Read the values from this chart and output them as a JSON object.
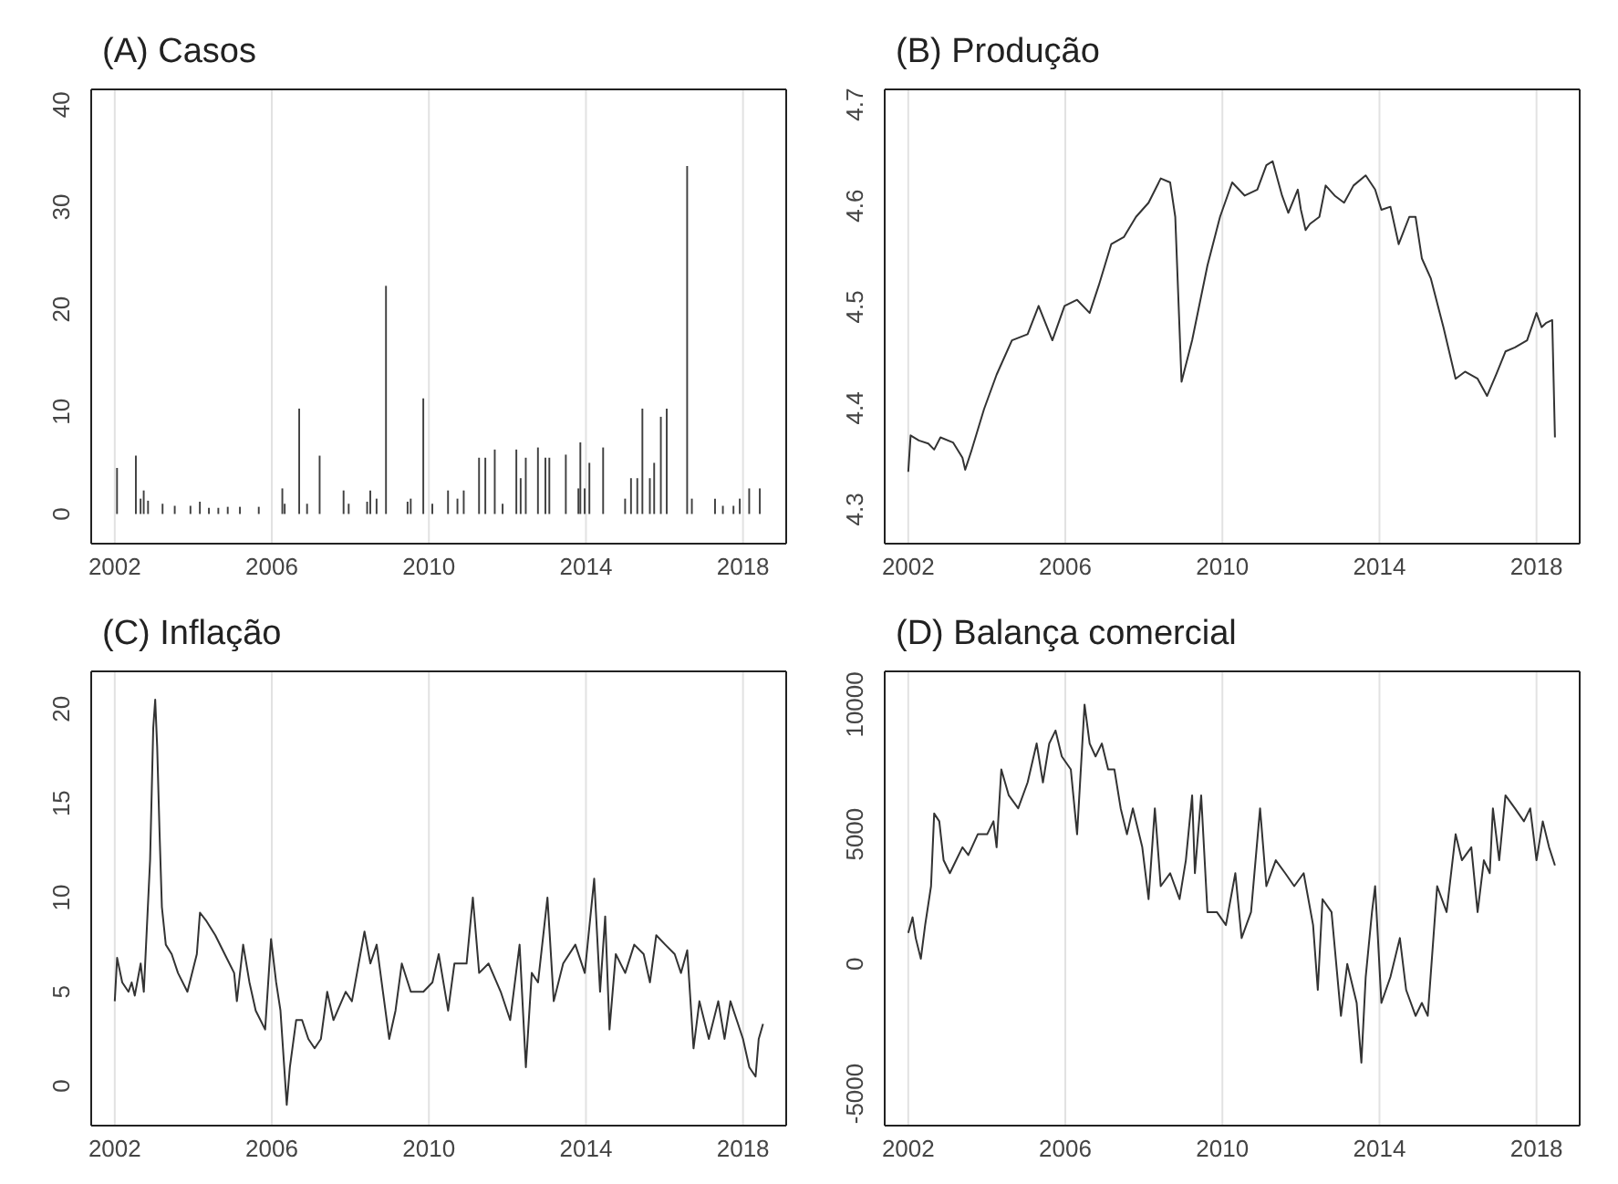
{
  "chart_data": [
    {
      "type": "bar",
      "title": "(A) Casos",
      "color": "#404040",
      "grid": "x",
      "xlim": [
        2001.4,
        2019.1
      ],
      "xticks": [
        2002,
        2006,
        2010,
        2014,
        2018
      ],
      "ylim": [
        -2.9,
        41.5
      ],
      "yticks": [
        0,
        10,
        20,
        30,
        40
      ],
      "x": [
        2002.06,
        2002.54,
        2002.66,
        2002.74,
        2002.85,
        2003.22,
        2003.53,
        2003.93,
        2004.17,
        2004.4,
        2004.64,
        2004.88,
        2005.19,
        2005.67,
        2006.27,
        2006.33,
        2006.7,
        2006.9,
        2007.22,
        2007.83,
        2007.96,
        2008.43,
        2008.51,
        2008.67,
        2008.91,
        2009.46,
        2009.54,
        2009.86,
        2010.09,
        2010.49,
        2010.73,
        2010.89,
        2011.28,
        2011.44,
        2011.68,
        2011.88,
        2012.23,
        2012.34,
        2012.47,
        2012.78,
        2012.97,
        2013.07,
        2013.49,
        2013.81,
        2013.86,
        2013.97,
        2014.09,
        2014.44,
        2015.0,
        2015.15,
        2015.31,
        2015.44,
        2015.63,
        2015.74,
        2015.91,
        2016.06,
        2016.58,
        2016.7,
        2017.29,
        2017.49,
        2017.76,
        2017.92,
        2018.16,
        2018.43
      ],
      "values": [
        4.5,
        5.7,
        1.5,
        2.3,
        1.3,
        1,
        0.8,
        0.8,
        1.2,
        0.6,
        0.6,
        0.7,
        0.7,
        0.7,
        2.5,
        1,
        10.3,
        1,
        5.7,
        2.3,
        1,
        1.2,
        2.3,
        1.5,
        22.3,
        1.2,
        1.5,
        11.3,
        1,
        2.3,
        1.5,
        2.3,
        5.5,
        5.5,
        6.3,
        1,
        6.3,
        3.5,
        5.5,
        6.5,
        5.5,
        5.5,
        5.8,
        2.5,
        7,
        2.5,
        5,
        6.5,
        1.5,
        3.5,
        3.5,
        10.3,
        3.5,
        5,
        9.5,
        10.3,
        34,
        1.5,
        1.5,
        0.8,
        0.8,
        1.5,
        2.5,
        2.5
      ]
    },
    {
      "type": "line",
      "title": "(B) Produção",
      "color": "#333333",
      "grid": "x",
      "xlim": [
        2001.4,
        2019.1
      ],
      "xticks": [
        2002,
        2006,
        2010,
        2014,
        2018
      ],
      "ylim": [
        4.266,
        4.715
      ],
      "yticks": [
        4.3,
        4.4,
        4.5,
        4.6,
        4.7
      ],
      "x": [
        2002.0,
        2002.06,
        2002.27,
        2002.51,
        2002.66,
        2002.82,
        2003.14,
        2003.38,
        2003.45,
        2003.61,
        2003.93,
        2004.25,
        2004.64,
        2005.04,
        2005.32,
        2005.67,
        2005.98,
        2006.3,
        2006.62,
        2006.85,
        2007.17,
        2007.49,
        2007.8,
        2008.12,
        2008.43,
        2008.67,
        2008.8,
        2008.96,
        2009.23,
        2009.62,
        2009.94,
        2010.25,
        2010.57,
        2010.89,
        2011.12,
        2011.28,
        2011.52,
        2011.68,
        2011.92,
        2012.0,
        2012.12,
        2012.23,
        2012.47,
        2012.63,
        2012.86,
        2013.1,
        2013.34,
        2013.65,
        2013.89,
        2014.05,
        2014.28,
        2014.49,
        2014.76,
        2014.92,
        2015.08,
        2015.31,
        2015.63,
        2015.94,
        2016.18,
        2016.5,
        2016.74,
        2016.97,
        2017.21,
        2017.45,
        2017.76,
        2018.0,
        2018.13,
        2018.24,
        2018.4,
        2018.47
      ],
      "values": [
        4.337,
        4.373,
        4.368,
        4.365,
        4.359,
        4.371,
        4.366,
        4.351,
        4.339,
        4.358,
        4.399,
        4.433,
        4.467,
        4.473,
        4.501,
        4.467,
        4.501,
        4.507,
        4.494,
        4.521,
        4.562,
        4.569,
        4.589,
        4.603,
        4.627,
        4.623,
        4.589,
        4.426,
        4.467,
        4.541,
        4.589,
        4.623,
        4.61,
        4.616,
        4.64,
        4.644,
        4.61,
        4.593,
        4.616,
        4.596,
        4.576,
        4.582,
        4.589,
        4.62,
        4.61,
        4.603,
        4.62,
        4.63,
        4.616,
        4.596,
        4.599,
        4.562,
        4.589,
        4.589,
        4.548,
        4.528,
        4.48,
        4.429,
        4.436,
        4.429,
        4.412,
        4.433,
        4.456,
        4.46,
        4.467,
        4.494,
        4.48,
        4.484,
        4.487,
        4.371
      ]
    },
    {
      "type": "line",
      "title": "(C) Inflação",
      "color": "#333333",
      "grid": "x",
      "xlim": [
        2001.4,
        2019.1
      ],
      "xticks": [
        2002,
        2006,
        2010,
        2014,
        2018
      ],
      "ylim": [
        -2.1,
        22
      ],
      "yticks": [
        0,
        5,
        10,
        15,
        20
      ],
      "x": [
        2002.0,
        2002.06,
        2002.19,
        2002.35,
        2002.43,
        2002.51,
        2002.66,
        2002.74,
        2002.9,
        2002.98,
        2003.03,
        2003.08,
        2003.14,
        2003.2,
        2003.3,
        2003.45,
        2003.61,
        2003.85,
        2004.09,
        2004.17,
        2004.32,
        2004.56,
        2004.8,
        2005.04,
        2005.11,
        2005.27,
        2005.43,
        2005.59,
        2005.83,
        2005.98,
        2006.11,
        2006.22,
        2006.38,
        2006.46,
        2006.62,
        2006.77,
        2006.93,
        2007.09,
        2007.25,
        2007.41,
        2007.57,
        2007.88,
        2008.04,
        2008.36,
        2008.51,
        2008.67,
        2008.83,
        2008.99,
        2009.15,
        2009.31,
        2009.54,
        2009.86,
        2010.09,
        2010.25,
        2010.49,
        2010.65,
        2010.96,
        2011.12,
        2011.28,
        2011.52,
        2011.83,
        2012.07,
        2012.31,
        2012.47,
        2012.62,
        2012.78,
        2013.02,
        2013.18,
        2013.42,
        2013.73,
        2013.97,
        2014.21,
        2014.36,
        2014.49,
        2014.6,
        2014.76,
        2015.0,
        2015.23,
        2015.47,
        2015.63,
        2015.79,
        2016.02,
        2016.26,
        2016.42,
        2016.58,
        2016.74,
        2016.89,
        2017.13,
        2017.37,
        2017.53,
        2017.68,
        2017.84,
        2018.0,
        2018.16,
        2018.32,
        2018.4,
        2018.51
      ],
      "values": [
        4.5,
        6.8,
        5.5,
        5,
        5.5,
        4.8,
        6.5,
        5,
        12,
        19,
        20.5,
        18,
        13.5,
        9.5,
        7.5,
        7,
        6,
        5,
        7,
        9.2,
        8.8,
        8,
        7,
        6,
        4.5,
        7.5,
        5.5,
        4,
        3,
        7.8,
        5.5,
        4,
        -1,
        1,
        3.5,
        3.5,
        2.5,
        2,
        2.5,
        5,
        3.5,
        5,
        4.5,
        8.2,
        6.5,
        7.5,
        5,
        2.5,
        4,
        6.5,
        5,
        5,
        5.5,
        7,
        4,
        6.5,
        6.5,
        10,
        6,
        6.5,
        5,
        3.5,
        7.5,
        1,
        6,
        5.5,
        10,
        4.5,
        6.5,
        7.5,
        6,
        11,
        5,
        9,
        3,
        7,
        6,
        7.5,
        7,
        5.5,
        8,
        7.5,
        7,
        6,
        7.2,
        2,
        4.5,
        2.5,
        4.5,
        2.5,
        4.5,
        3.5,
        2.5,
        1,
        0.5,
        2.5,
        3.3
      ]
    },
    {
      "type": "line",
      "title": "(D) Balança comercial",
      "color": "#333333",
      "grid": "x",
      "xlim": [
        2001.4,
        2019.1
      ],
      "xticks": [
        2002,
        2006,
        2010,
        2014,
        2018
      ],
      "ylim": [
        -6230,
        11280
      ],
      "yticks": [
        -5000,
        0,
        5000,
        10000
      ],
      "x": [
        2002.0,
        2002.11,
        2002.19,
        2002.32,
        2002.43,
        2002.58,
        2002.66,
        2002.79,
        2002.9,
        2003.06,
        2003.22,
        2003.38,
        2003.53,
        2003.77,
        2004.01,
        2004.17,
        2004.25,
        2004.37,
        2004.56,
        2004.8,
        2005.04,
        2005.27,
        2005.43,
        2005.59,
        2005.75,
        2005.91,
        2006.14,
        2006.3,
        2006.49,
        2006.62,
        2006.77,
        2006.93,
        2007.09,
        2007.25,
        2007.41,
        2007.57,
        2007.72,
        2007.96,
        2008.12,
        2008.28,
        2008.43,
        2008.67,
        2008.91,
        2009.07,
        2009.23,
        2009.3,
        2009.46,
        2009.62,
        2009.86,
        2010.09,
        2010.33,
        2010.49,
        2010.73,
        2010.96,
        2011.12,
        2011.36,
        2011.6,
        2011.83,
        2012.07,
        2012.31,
        2012.43,
        2012.55,
        2012.78,
        2013.02,
        2013.18,
        2013.42,
        2013.54,
        2013.65,
        2013.81,
        2013.89,
        2014.05,
        2014.28,
        2014.52,
        2014.68,
        2014.92,
        2015.08,
        2015.23,
        2015.47,
        2015.71,
        2015.94,
        2016.1,
        2016.34,
        2016.5,
        2016.66,
        2016.81,
        2016.89,
        2017.05,
        2017.21,
        2017.45,
        2017.68,
        2017.84,
        2018.0,
        2018.16,
        2018.32,
        2018.47
      ],
      "values": [
        1200,
        1800,
        1000,
        200,
        1500,
        3000,
        5800,
        5500,
        4000,
        3500,
        4000,
        4500,
        4200,
        5000,
        5000,
        5500,
        4500,
        7500,
        6500,
        6000,
        7000,
        8500,
        7000,
        8500,
        9000,
        8000,
        7500,
        5000,
        10000,
        8500,
        8000,
        8500,
        7500,
        7500,
        6000,
        5000,
        6000,
        4500,
        2500,
        6000,
        3000,
        3500,
        2500,
        4000,
        6500,
        3500,
        6500,
        2000,
        2000,
        1500,
        3500,
        1000,
        2000,
        6000,
        3000,
        4000,
        3500,
        3000,
        3500,
        1500,
        -1000,
        2500,
        2000,
        -2000,
        0,
        -1500,
        -3800,
        -500,
        2000,
        3000,
        -1500,
        -500,
        1000,
        -1000,
        -2000,
        -1500,
        -2000,
        3000,
        2000,
        5000,
        4000,
        4500,
        2000,
        4000,
        3500,
        6000,
        4000,
        6500,
        6000,
        5500,
        6000,
        4000,
        5500,
        4500,
        3800
      ]
    }
  ]
}
